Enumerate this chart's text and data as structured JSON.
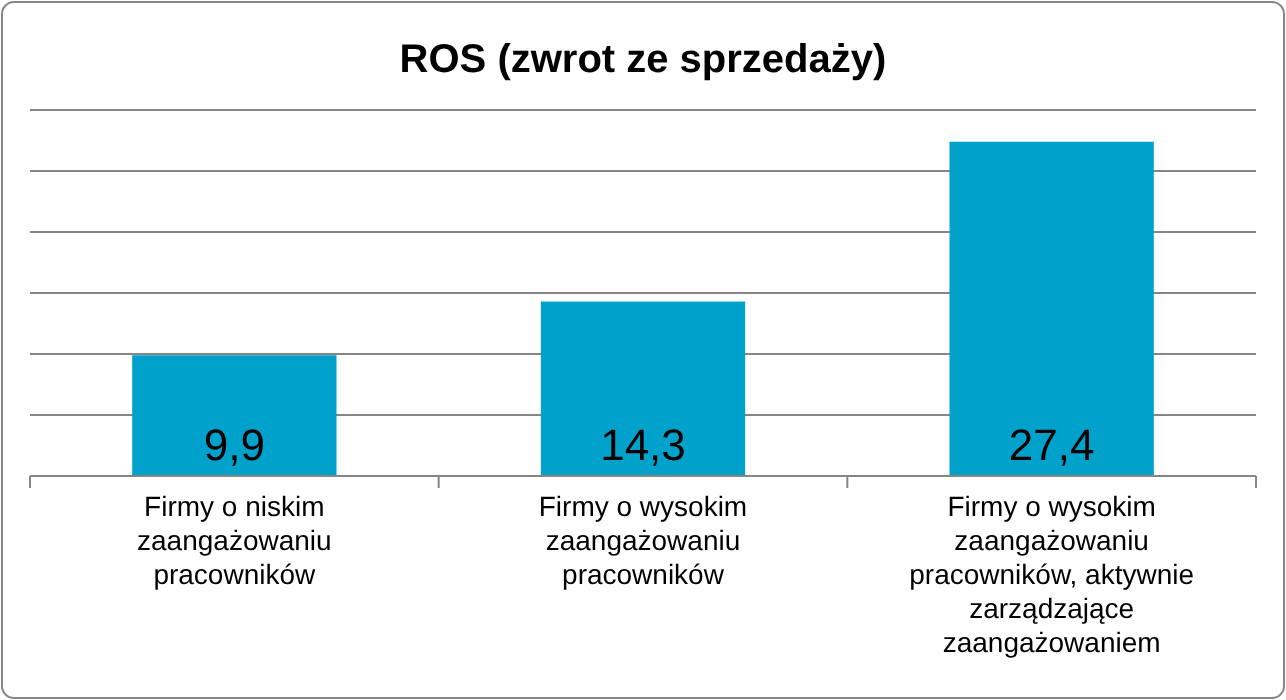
{
  "chart_data": {
    "type": "bar",
    "title": "ROS (zwrot ze sprzedaży)",
    "categories": [
      "Firmy o niskim zaangażowaniu pracowników",
      "Firmy o wysokim zaangażowaniu pracowników",
      "Firmy o wysokim zaangażowaniu pracowników, aktywnie zarządzające zaangażowaniem"
    ],
    "values": [
      9.9,
      14.3,
      27.4
    ],
    "color": "#00a2cc",
    "value_labels": [
      "9,9",
      "14,3",
      "27,4"
    ],
    "ylim": [
      0,
      30
    ],
    "yticks": [
      {
        "value": 0,
        "label": null
      },
      {
        "value": 5,
        "label": null
      },
      {
        "value": 10,
        "label": null
      },
      {
        "value": 15,
        "label": null
      },
      {
        "value": 20,
        "label": null
      },
      {
        "value": 25,
        "label": null
      },
      {
        "value": 30,
        "label": null
      }
    ],
    "grid": "y",
    "tick_labels": "x"
  }
}
